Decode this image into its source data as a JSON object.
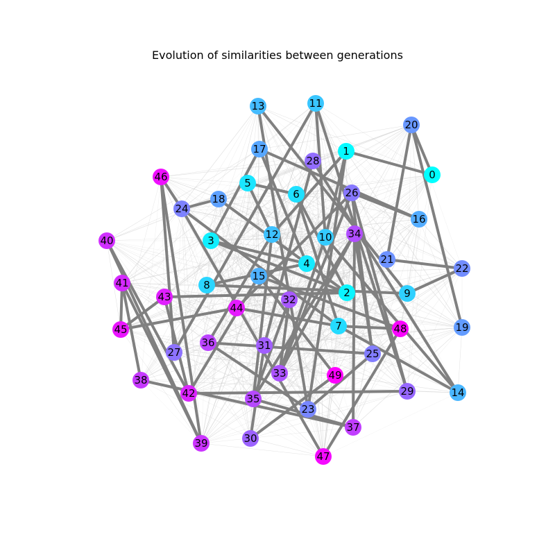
{
  "diagram": {
    "title": "Evolution of similarities between generations",
    "colormap": "cool",
    "node_color_start": "#00ffff",
    "node_color_end": "#ff00ff",
    "strong_edge_color": "#808080",
    "weak_edge_color": "#c8c8c8",
    "nodes": [
      {
        "id": 0,
        "label": "0"
      },
      {
        "id": 1,
        "label": "1"
      },
      {
        "id": 2,
        "label": "2"
      },
      {
        "id": 3,
        "label": "3"
      },
      {
        "id": 4,
        "label": "4"
      },
      {
        "id": 5,
        "label": "5"
      },
      {
        "id": 6,
        "label": "6"
      },
      {
        "id": 7,
        "label": "7"
      },
      {
        "id": 8,
        "label": "8"
      },
      {
        "id": 9,
        "label": "9"
      },
      {
        "id": 10,
        "label": "10"
      },
      {
        "id": 11,
        "label": "11"
      },
      {
        "id": 12,
        "label": "12"
      },
      {
        "id": 13,
        "label": "13"
      },
      {
        "id": 14,
        "label": "14"
      },
      {
        "id": 15,
        "label": "15"
      },
      {
        "id": 16,
        "label": "16"
      },
      {
        "id": 17,
        "label": "17"
      },
      {
        "id": 18,
        "label": "18"
      },
      {
        "id": 19,
        "label": "19"
      },
      {
        "id": 20,
        "label": "20"
      },
      {
        "id": 21,
        "label": "21"
      },
      {
        "id": 22,
        "label": "22"
      },
      {
        "id": 23,
        "label": "23"
      },
      {
        "id": 24,
        "label": "24"
      },
      {
        "id": 25,
        "label": "25"
      },
      {
        "id": 26,
        "label": "26"
      },
      {
        "id": 27,
        "label": "27"
      },
      {
        "id": 28,
        "label": "28"
      },
      {
        "id": 29,
        "label": "29"
      },
      {
        "id": 30,
        "label": "30"
      },
      {
        "id": 31,
        "label": "31"
      },
      {
        "id": 32,
        "label": "32"
      },
      {
        "id": 33,
        "label": "33"
      },
      {
        "id": 34,
        "label": "34"
      },
      {
        "id": 35,
        "label": "35"
      },
      {
        "id": 36,
        "label": "36"
      },
      {
        "id": 37,
        "label": "37"
      },
      {
        "id": 38,
        "label": "38"
      },
      {
        "id": 39,
        "label": "39"
      },
      {
        "id": 40,
        "label": "40"
      },
      {
        "id": 41,
        "label": "41"
      },
      {
        "id": 42,
        "label": "42"
      },
      {
        "id": 43,
        "label": "43"
      },
      {
        "id": 44,
        "label": "44"
      },
      {
        "id": 45,
        "label": "45"
      },
      {
        "id": 46,
        "label": "46"
      },
      {
        "id": 47,
        "label": "47"
      },
      {
        "id": 48,
        "label": "48"
      },
      {
        "id": 49,
        "label": "49"
      }
    ],
    "strong_edges": [
      [
        0,
        1
      ],
      [
        0,
        20
      ],
      [
        1,
        10
      ],
      [
        1,
        23
      ],
      [
        11,
        27
      ],
      [
        11,
        29
      ],
      [
        13,
        9
      ],
      [
        13,
        23
      ],
      [
        17,
        3
      ],
      [
        17,
        16
      ],
      [
        17,
        4
      ],
      [
        5,
        12
      ],
      [
        6,
        2
      ],
      [
        6,
        7
      ],
      [
        18,
        24
      ],
      [
        18,
        2
      ],
      [
        24,
        46
      ],
      [
        24,
        47
      ],
      [
        24,
        7
      ],
      [
        26,
        29
      ],
      [
        26,
        25
      ],
      [
        26,
        44
      ],
      [
        26,
        33
      ],
      [
        12,
        35
      ],
      [
        12,
        36
      ],
      [
        3,
        2
      ],
      [
        3,
        4
      ],
      [
        15,
        49
      ],
      [
        15,
        48
      ],
      [
        15,
        42
      ],
      [
        22,
        9
      ],
      [
        21,
        20
      ],
      [
        21,
        22
      ],
      [
        20,
        19
      ],
      [
        8,
        9
      ],
      [
        8,
        4
      ],
      [
        28,
        14
      ],
      [
        28,
        31
      ],
      [
        34,
        25
      ],
      [
        34,
        33
      ],
      [
        34,
        37
      ],
      [
        10,
        14
      ],
      [
        41,
        38
      ],
      [
        41,
        45
      ],
      [
        41,
        39
      ],
      [
        40,
        39
      ],
      [
        40,
        42
      ],
      [
        43,
        45
      ],
      [
        43,
        2
      ],
      [
        43,
        42
      ],
      [
        44,
        45
      ],
      [
        44,
        7
      ],
      [
        46,
        27
      ],
      [
        46,
        39
      ],
      [
        31,
        30
      ],
      [
        32,
        35
      ],
      [
        32,
        33
      ],
      [
        36,
        25
      ],
      [
        36,
        23
      ],
      [
        38,
        37
      ],
      [
        42,
        29
      ],
      [
        35,
        37
      ],
      [
        30,
        49
      ],
      [
        48,
        47
      ],
      [
        48,
        7
      ],
      [
        7,
        14
      ],
      [
        25,
        23
      ],
      [
        10,
        33
      ],
      [
        5,
        6
      ],
      [
        16,
        26
      ],
      [
        11,
        10
      ],
      [
        1,
        12
      ],
      [
        34,
        35
      ]
    ]
  }
}
